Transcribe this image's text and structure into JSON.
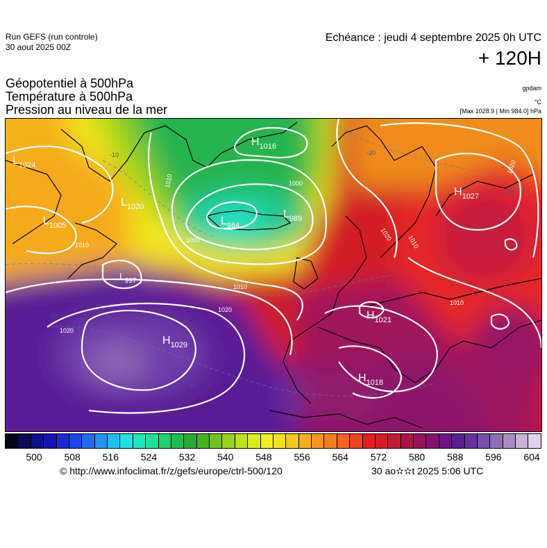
{
  "header": {
    "run_model": "Run GEFS (run controle)",
    "run_date": "30 aout 2025 00Z",
    "valid_time": "Echéance : jeudi 4 septembre 2025 0h UTC",
    "lead_time": "+ 120H"
  },
  "parameters": [
    "Géopotentiel à 500hPa",
    "Température à 500hPa",
    "Pression au niveau de la mer"
  ],
  "units": {
    "geopotential": "gpdam",
    "temperature": "°C",
    "pressure": "[Max 1028.9 | Min 984.0] hPa"
  },
  "map": {
    "pressure_centers": [
      {
        "type": "H",
        "value": "1016"
      },
      {
        "type": "L",
        "value": "1024"
      },
      {
        "type": "L",
        "value": "1020"
      },
      {
        "type": "L",
        "value": "1005"
      },
      {
        "type": "L",
        "value": "984"
      },
      {
        "type": "L",
        "value": "989"
      },
      {
        "type": "L",
        "value": "997"
      },
      {
        "type": "H",
        "value": "1029"
      },
      {
        "type": "H",
        "value": "1027"
      },
      {
        "type": "H",
        "value": "1021"
      },
      {
        "type": "H",
        "value": "1018"
      }
    ],
    "isobar_labels": [
      "1010",
      "1000",
      "1000",
      "1010",
      "1020",
      "1020",
      "1010",
      "1020",
      "1010",
      "1020",
      "1010"
    ],
    "isotherm_labels": [
      "-20",
      "-20",
      "-10",
      "-10",
      "-10"
    ]
  },
  "colorbar": {
    "ticks": [
      "500",
      "508",
      "516",
      "524",
      "532",
      "540",
      "548",
      "556",
      "564",
      "572",
      "580",
      "588",
      "596",
      "604"
    ],
    "colors": [
      "#05051a",
      "#0a0a55",
      "#0f0f8c",
      "#1414b4",
      "#1e28d2",
      "#1e46e6",
      "#1e6ef0",
      "#1e96f0",
      "#1ebef0",
      "#1ee1e6",
      "#1ee6be",
      "#1ee196",
      "#1ed26e",
      "#1ebe50",
      "#28aa32",
      "#46b41e",
      "#6ec31e",
      "#96d21e",
      "#bee11e",
      "#dceb1e",
      "#f0f01e",
      "#f5e11e",
      "#f5c81e",
      "#f5af1e",
      "#f5961e",
      "#f57d1e",
      "#f5641e",
      "#f0461e",
      "#e61e1e",
      "#d21e28",
      "#be1e32",
      "#aa1446",
      "#96145a",
      "#82146e",
      "#6e1482",
      "#5a1e96",
      "#6432a0",
      "#7850aa",
      "#8c6eb4",
      "#aa8cc3",
      "#c8b4d7",
      "#e1d2eb"
    ],
    "accent_palette": {
      "green": "#1eb45a",
      "teal": "#28d296",
      "yellow": "#f0e61e",
      "orange": "#f5961e",
      "red": "#e61e1e",
      "crimson": "#b41e32",
      "purple": "#5a1e96",
      "violet": "#8c64b4"
    }
  },
  "footer": {
    "source_url": "© http://www.infoclimat.fr/z/gefs/europe/ctrl-500/120",
    "render_date": "30 ao✫✫t 2025  5:06 UTC"
  }
}
